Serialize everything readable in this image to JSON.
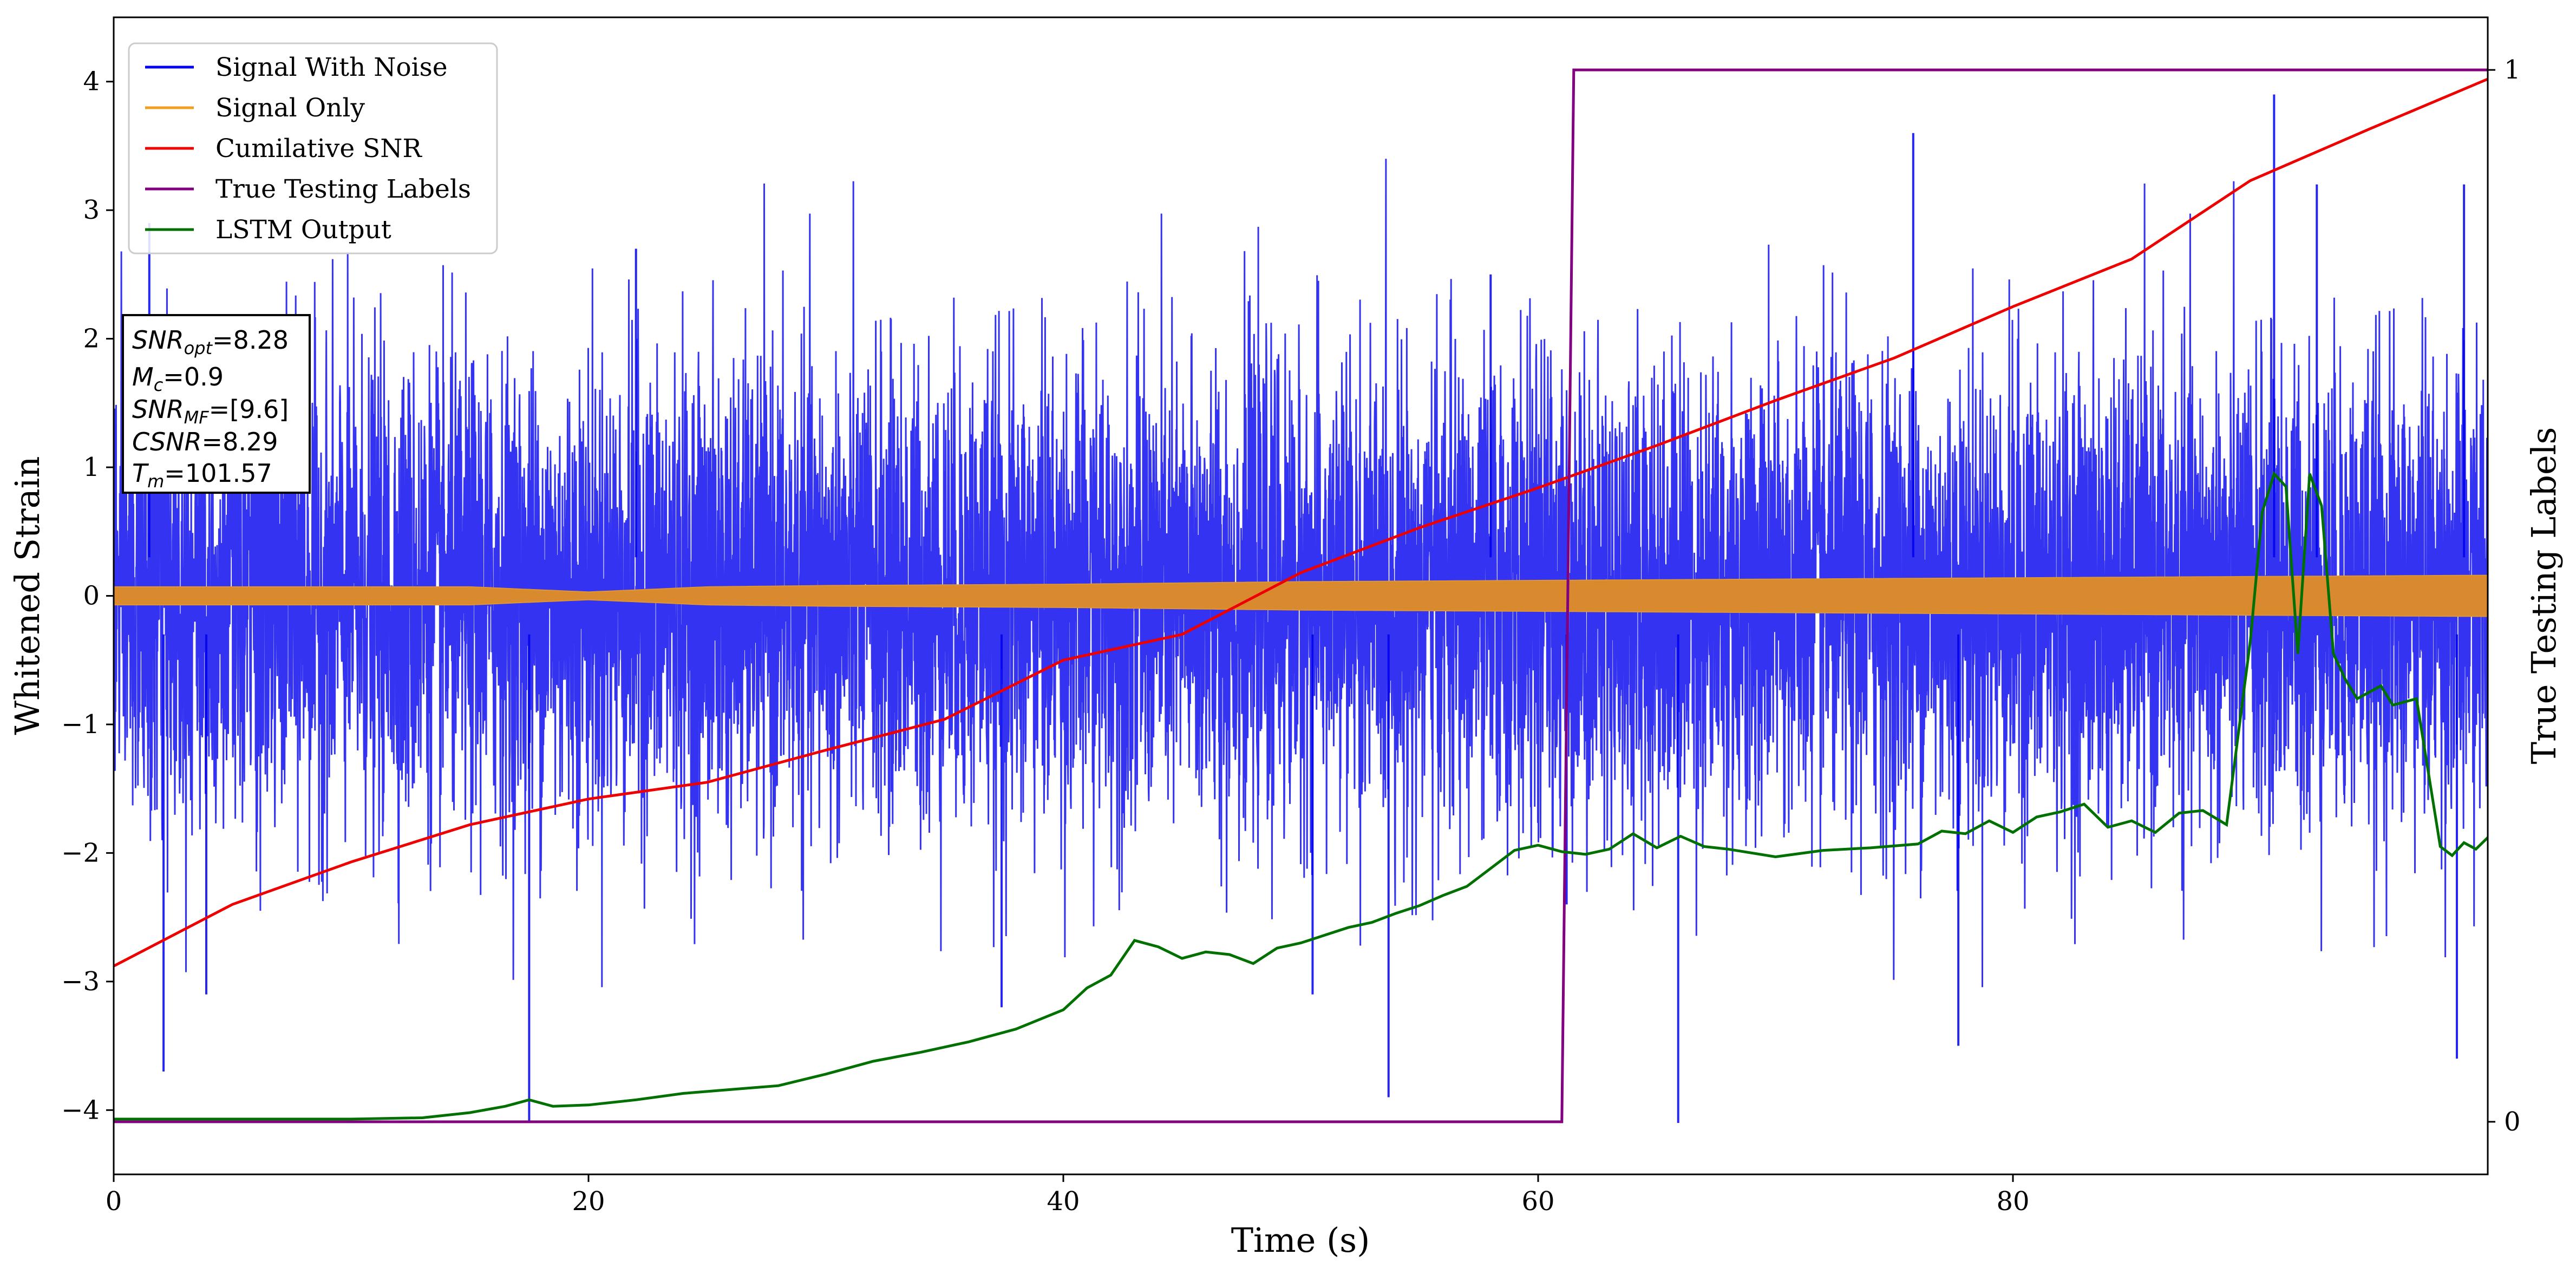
{
  "chart_data": {
    "type": "line",
    "xlabel": "Time (s)",
    "ylabel": "Whitened Strain",
    "ylabel_right": "True Testing Labels",
    "xlim": [
      0,
      100
    ],
    "ylim": [
      -4.5,
      4.5
    ],
    "ylim_right": [
      -0.05,
      1.05
    ],
    "x_ticks": [
      0,
      20,
      40,
      60,
      80
    ],
    "y_ticks": [
      -4,
      -3,
      -2,
      -1,
      0,
      1,
      2,
      3,
      4
    ],
    "y_ticks_right": [
      0,
      1
    ],
    "legend_position": "upper-left",
    "series": [
      {
        "name": "Signal With Noise",
        "color": "#0000ee",
        "axis": "left",
        "style": "noise band",
        "typical_range": [
          -1.8,
          1.8
        ],
        "spikes": [
          [
            2.1,
            -3.7
          ],
          [
            1.5,
            2.9
          ],
          [
            3.9,
            -3.1
          ],
          [
            22,
            2.7
          ],
          [
            17.5,
            -4.1
          ],
          [
            37.4,
            -3.2
          ],
          [
            50.5,
            -3.1
          ],
          [
            53.7,
            -3.9
          ],
          [
            58,
            2.5
          ],
          [
            61.2,
            -2.4
          ],
          [
            65.9,
            -4.1
          ],
          [
            75.8,
            3.6
          ],
          [
            77.7,
            -3.5
          ],
          [
            91,
            3.9
          ],
          [
            92.8,
            3.2
          ],
          [
            98.7,
            -3.6
          ],
          [
            99,
            3.2
          ]
        ]
      },
      {
        "name": "Signal Only",
        "color": "#f0a020",
        "axis": "left",
        "style": "oscillation envelope",
        "x": [
          0,
          15,
          20,
          25,
          30,
          40,
          50,
          60,
          70,
          80,
          90,
          100
        ],
        "amplitude": [
          0.07,
          0.07,
          0.03,
          0.07,
          0.08,
          0.09,
          0.11,
          0.12,
          0.13,
          0.14,
          0.15,
          0.16
        ]
      },
      {
        "name": "Cumilative SNR",
        "color": "#ee0000",
        "axis": "left",
        "x": [
          0,
          5,
          10,
          15,
          20,
          25,
          30,
          35,
          40,
          45,
          50,
          55,
          60,
          65,
          70,
          75,
          80,
          85,
          90,
          95,
          100
        ],
        "y": [
          -2.88,
          -2.4,
          -2.07,
          -1.78,
          -1.58,
          -1.45,
          -1.2,
          -0.96,
          -0.5,
          -0.3,
          0.18,
          0.53,
          0.84,
          1.17,
          1.52,
          1.85,
          2.25,
          2.62,
          3.23,
          3.63,
          4.02
        ]
      },
      {
        "name": "True Testing Labels",
        "color": "#800080",
        "axis": "right",
        "x": [
          0,
          61,
          61.5,
          100
        ],
        "y": [
          0,
          0,
          1,
          1
        ]
      },
      {
        "name": "LSTM Output",
        "color": "#007000",
        "axis": "left",
        "x": [
          0,
          10,
          13,
          15,
          16.5,
          17.5,
          18.5,
          20,
          22,
          24,
          26,
          28,
          30,
          32,
          34,
          36,
          38,
          40,
          41,
          42,
          43,
          44,
          45,
          46,
          47,
          48,
          49,
          50,
          51,
          52,
          53,
          54,
          55,
          56,
          57,
          58,
          59,
          60,
          61,
          62,
          63,
          64,
          65,
          66,
          67,
          68,
          70,
          72,
          74,
          76,
          77,
          78,
          79,
          80,
          81,
          82,
          83,
          84,
          85,
          86,
          87,
          88,
          89,
          90,
          90.5,
          91,
          91.5,
          92,
          92.5,
          93,
          93.5,
          94,
          94.5,
          95,
          95.5,
          96,
          97,
          98,
          98.5,
          99,
          99.5,
          100
        ],
        "y": [
          -4.07,
          -4.07,
          -4.06,
          -4.02,
          -3.97,
          -3.92,
          -3.97,
          -3.96,
          -3.92,
          -3.87,
          -3.84,
          -3.81,
          -3.72,
          -3.62,
          -3.55,
          -3.47,
          -3.37,
          -3.22,
          -3.05,
          -2.95,
          -2.68,
          -2.73,
          -2.82,
          -2.77,
          -2.79,
          -2.86,
          -2.74,
          -2.7,
          -2.64,
          -2.58,
          -2.54,
          -2.47,
          -2.41,
          -2.33,
          -2.26,
          -2.12,
          -1.98,
          -1.94,
          -1.99,
          -2.01,
          -1.97,
          -1.85,
          -1.96,
          -1.87,
          -1.95,
          -1.97,
          -2.03,
          -1.98,
          -1.96,
          -1.93,
          -1.83,
          -1.85,
          -1.75,
          -1.84,
          -1.72,
          -1.68,
          -1.62,
          -1.8,
          -1.75,
          -1.84,
          -1.69,
          -1.67,
          -1.78,
          -0.35,
          0.65,
          0.95,
          0.85,
          -0.45,
          0.95,
          0.7,
          -0.45,
          -0.65,
          -0.8,
          -0.75,
          -0.7,
          -0.85,
          -0.8,
          -1.95,
          -2.02,
          -1.92,
          -1.97,
          -1.88
        ]
      }
    ]
  },
  "info_box": {
    "snr_opt_label": "SNR",
    "snr_opt_sub": "opt",
    "snr_opt_value": "=8.28",
    "mc_label": "M",
    "mc_sub": "c",
    "mc_value": "=0.9",
    "snr_mf_label": "SNR",
    "snr_mf_sub": "MF",
    "snr_mf_value": "=[9.6]",
    "csnr_label": "CSNR",
    "csnr_value": "=8.29",
    "tm_label": "T",
    "tm_sub": "m",
    "tm_value": "=101.57"
  }
}
